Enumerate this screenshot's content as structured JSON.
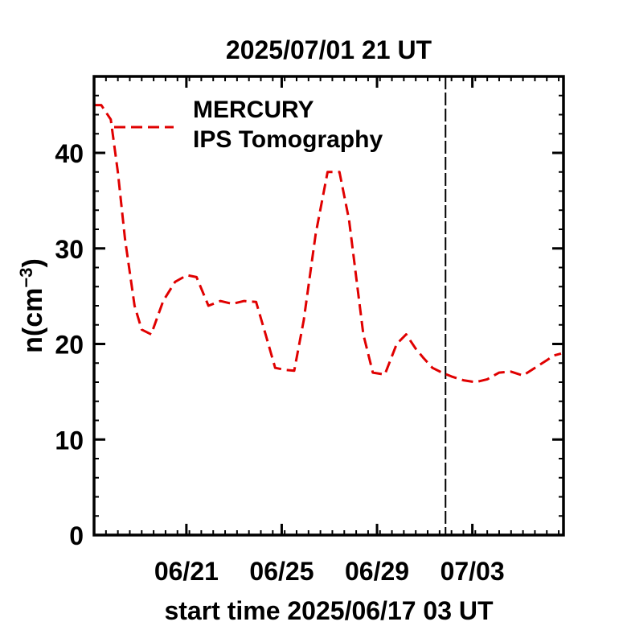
{
  "chart_data": {
    "type": "line",
    "title": "2025/07/01 21 UT",
    "xlabel": "start time 2025/06/17 03 UT",
    "ylabel_main": "n",
    "ylabel_unit": "cm",
    "ylabel_exp": "−3",
    "x_ticks": [
      "06/21",
      "06/25",
      "06/29",
      "07/03"
    ],
    "y_ticks": [
      "0",
      "10",
      "20",
      "30",
      "40"
    ],
    "ylim": [
      0,
      48
    ],
    "xlim_days": [
      0,
      19.7
    ],
    "x_tick_days": [
      3.875,
      7.875,
      11.875,
      15.875
    ],
    "now_marker_day": 14.75,
    "legend": {
      "placement": "top-left",
      "line1": "MERCURY",
      "line2": "IPS Tomography"
    },
    "series": [
      {
        "color": "#e00000",
        "x": [
          0,
          0.3,
          0.7,
          1.0,
          1.3,
          1.7,
          2.0,
          2.4,
          2.9,
          3.4,
          3.9,
          4.3,
          4.8,
          5.3,
          5.8,
          6.3,
          6.8,
          7.2,
          7.6,
          8.0,
          8.4,
          8.8,
          9.3,
          9.8,
          10.3,
          10.7,
          11.0,
          11.3,
          11.7,
          12.2,
          12.7,
          13.1,
          13.5,
          13.8,
          14.2,
          14.6,
          15.0,
          15.5,
          16.0,
          16.5,
          17.0,
          17.5,
          18.0,
          18.5,
          19.0,
          19.3,
          19.6
        ],
        "y": [
          45,
          45,
          43.5,
          38,
          31,
          24,
          21.5,
          21,
          24.5,
          26.5,
          27.2,
          27,
          24,
          24.5,
          24.2,
          24.5,
          24.4,
          21,
          17.5,
          17.3,
          17.2,
          22.5,
          31.5,
          38,
          38,
          33,
          27,
          21,
          17,
          16.8,
          20,
          21,
          19.5,
          18.6,
          17.5,
          17,
          16.6,
          16.2,
          16.0,
          16.3,
          17.0,
          17.1,
          16.7,
          17.5,
          18.3,
          18.8,
          19.0
        ]
      }
    ]
  }
}
